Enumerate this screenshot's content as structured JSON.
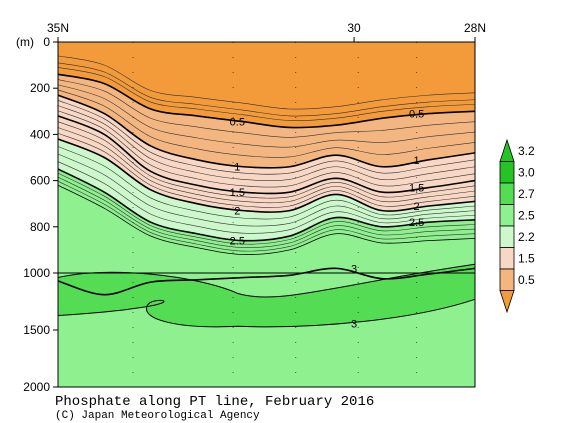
{
  "chart_data": {
    "type": "heatmap",
    "title": "Phosphate along PT line, February 2016",
    "credit": "(C) Japan Meteorological Agency",
    "ylabel": "(m)",
    "x_ticks": [
      "35N",
      "30",
      "28N"
    ],
    "y_ticks": [
      "0",
      "200",
      "400",
      "600",
      "800",
      "1000",
      "1500",
      "2000"
    ],
    "ylim": [
      0,
      2000
    ],
    "colorbar": {
      "levels": [
        "3.2",
        "3.0",
        "2.7",
        "2.5",
        "2.2",
        "1.5",
        "0.5"
      ],
      "colors": [
        "#26c326",
        "#54dc54",
        "#8ef08e",
        "#ccf8cc",
        "#f8d8c4",
        "#f4b680",
        "#f39a3a"
      ]
    },
    "contour_labels": [
      "0.5",
      "1",
      "1.5",
      "2",
      "2.5",
      "3",
      "0.5",
      "1",
      "1.5",
      "2",
      "2.5",
      "3"
    ],
    "contours": [
      {
        "value": 0.5,
        "depths": [
          140,
          180,
          290,
          320,
          345,
          370,
          360,
          330,
          310,
          300
        ]
      },
      {
        "value": 1.0,
        "depths": [
          230,
          310,
          450,
          510,
          540,
          540,
          490,
          540,
          510,
          480
        ]
      },
      {
        "value": 1.5,
        "depths": [
          320,
          400,
          560,
          620,
          650,
          650,
          590,
          650,
          630,
          600
        ]
      },
      {
        "value": 2.0,
        "depths": [
          420,
          500,
          640,
          700,
          730,
          730,
          660,
          730,
          710,
          690
        ]
      },
      {
        "value": 2.5,
        "depths": [
          550,
          650,
          780,
          830,
          860,
          840,
          760,
          800,
          780,
          770
        ]
      },
      {
        "value": 2.7,
        "depths": [
          620,
          720,
          840,
          890,
          920,
          900,
          830,
          870,
          860,
          850
        ]
      },
      {
        "value": 3.0,
        "depths": [
          1070,
          1190,
          1080,
          1060,
          1040,
          1020,
          980,
          1050,
          1010,
          980
        ]
      }
    ],
    "max_pockets": [
      {
        "value": 3.2,
        "left_depth": 1110,
        "right_depth": 1450
      }
    ]
  }
}
